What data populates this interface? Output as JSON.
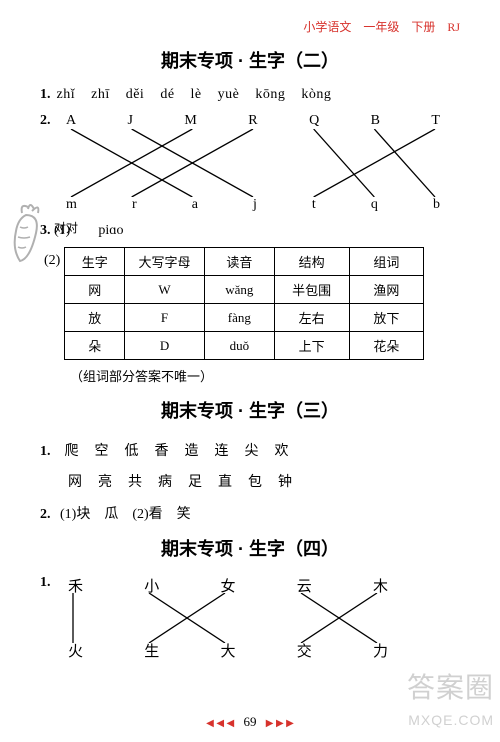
{
  "header": {
    "text": "小学语文　一年级　下册　RJ",
    "color": "#d7322c"
  },
  "section2": {
    "title": "期末专项 · 生字（二）",
    "q1": {
      "num": "1.",
      "pinyin": [
        "zhǐ",
        "zhī",
        "děi",
        "dé",
        "lè",
        "yuè",
        "kōng",
        "kòng"
      ]
    },
    "q2": {
      "num": "2.",
      "top": [
        "A",
        "J",
        "M",
        "R",
        "Q",
        "B",
        "T"
      ],
      "bottom": [
        "m",
        "r",
        "a",
        "j",
        "t",
        "q",
        "b"
      ],
      "edges": [
        [
          0,
          2
        ],
        [
          1,
          3
        ],
        [
          2,
          0
        ],
        [
          3,
          1
        ],
        [
          4,
          5
        ],
        [
          5,
          6
        ],
        [
          6,
          4
        ]
      ],
      "line_color": "#000000"
    },
    "q3": {
      "num": "3.",
      "part1_label": "(1)",
      "part1_text": "　　piɑo",
      "part1_overlay": "对对　",
      "part2_label": "(2)",
      "table": {
        "columns": [
          "生字",
          "大写字母",
          "读音",
          "结构",
          "组词"
        ],
        "rows": [
          [
            "网",
            "W",
            "wǎng",
            "半包围",
            "渔网"
          ],
          [
            "放",
            "F",
            "fàng",
            "左右",
            "放下"
          ],
          [
            "朵",
            "D",
            "duǒ",
            "上下",
            "花朵"
          ]
        ],
        "col_widths": [
          "60px",
          "80px",
          "70px",
          "75px",
          "75px"
        ]
      },
      "note": "（组词部分答案不唯一）"
    }
  },
  "section3": {
    "title": "期末专项 · 生字（三）",
    "q1": {
      "num": "1.",
      "row1": [
        "爬",
        "空",
        "低",
        "香",
        "造",
        "连",
        "尖",
        "欢"
      ],
      "row2": [
        "网",
        "亮",
        "共",
        "病",
        "足",
        "直",
        "包",
        "钟"
      ]
    },
    "q2": {
      "num": "2.",
      "text": "(1)块　瓜　(2)看　笑"
    }
  },
  "section4": {
    "title": "期末专项 · 生字（四）",
    "q1": {
      "num": "1.",
      "top": [
        "禾",
        "小",
        "女",
        "云",
        "木"
      ],
      "bottom": [
        "火",
        "生",
        "大",
        "交",
        "力"
      ],
      "edges": [
        [
          0,
          0
        ],
        [
          1,
          2
        ],
        [
          2,
          1
        ],
        [
          3,
          4
        ],
        [
          4,
          3
        ]
      ],
      "line_color": "#000000"
    }
  },
  "footer": {
    "page": "69",
    "color": "#d7322c"
  },
  "watermark": {
    "line1": "答案圈",
    "line2": "MXQE.COM",
    "color": "rgba(120,120,120,0.35)"
  },
  "icons": {
    "carrot_stroke": "#b0b0b0"
  }
}
